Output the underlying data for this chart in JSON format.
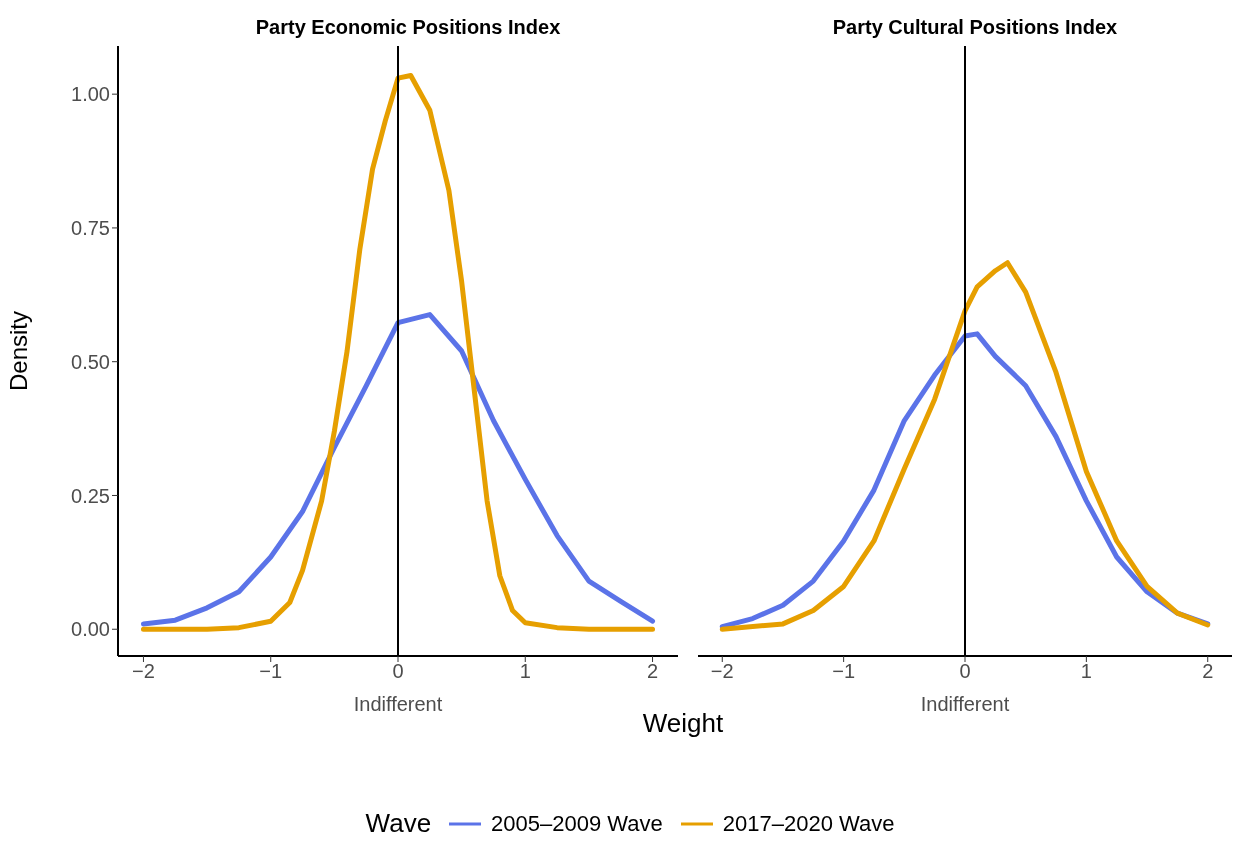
{
  "chart_data": [
    {
      "type": "line",
      "title": "Party Economic Positions Index",
      "xlabel": "Weight",
      "ylabel": "Density",
      "legend_title": "Wave",
      "legend": "bottom",
      "xlim": [
        -2.2,
        2.2
      ],
      "xticks": [
        -2,
        -1,
        0,
        1,
        2
      ],
      "ylim": [
        -0.05,
        1.09
      ],
      "yticks": [
        {
          "value": 0,
          "label": "0.00"
        },
        {
          "value": 0.25,
          "label": "0.25"
        },
        {
          "value": 0.5,
          "label": "0.50"
        },
        {
          "value": 0.75,
          "label": "0.75"
        },
        {
          "value": 1,
          "label": "1.00"
        }
      ],
      "ref_lines": [
        {
          "axis": "x",
          "value": 0,
          "label": "Indifferent",
          "color": "#000000"
        }
      ],
      "series": [
        {
          "name": "2005–2009 Wave",
          "color": "#5b73e8",
          "x": [
            -2,
            -1.75,
            -1.5,
            -1.25,
            -1,
            -0.75,
            -0.5,
            -0.25,
            0,
            0.25,
            0.5,
            0.75,
            1,
            1.25,
            1.5,
            1.75,
            2
          ],
          "values": [
            0.01,
            0.017,
            0.04,
            0.07,
            0.135,
            0.22,
            0.34,
            0.455,
            0.573,
            0.588,
            0.52,
            0.39,
            0.28,
            0.175,
            0.09,
            0.052,
            0.015
          ]
        },
        {
          "name": "2017–2020 Wave",
          "color": "#e69f00",
          "x": [
            -2,
            -1.5,
            -1.25,
            -1,
            -0.85,
            -0.75,
            -0.6,
            -0.5,
            -0.4,
            -0.3,
            -0.2,
            -0.1,
            0,
            0.1,
            0.25,
            0.4,
            0.5,
            0.6,
            0.7,
            0.8,
            0.9,
            1,
            1.25,
            1.5,
            2
          ],
          "values": [
            0,
            0,
            0.003,
            0.015,
            0.05,
            0.11,
            0.24,
            0.37,
            0.52,
            0.71,
            0.86,
            0.95,
            1.03,
            1.035,
            0.97,
            0.82,
            0.65,
            0.445,
            0.24,
            0.1,
            0.035,
            0.012,
            0.003,
            0,
            0
          ]
        }
      ]
    },
    {
      "type": "line",
      "title": "Party Cultural Positions Index",
      "tick_labels": "x",
      "xlim": [
        -2.2,
        2.2
      ],
      "xticks": [
        -2,
        -1,
        0,
        1,
        2
      ],
      "ylim": [
        -0.05,
        1.09
      ],
      "ref_lines": [
        {
          "axis": "x",
          "value": 0,
          "label": "Indifferent",
          "color": "#000000"
        }
      ],
      "series": [
        {
          "color": "#5b73e8",
          "x": [
            -2,
            -1.75,
            -1.5,
            -1.25,
            -1,
            -0.75,
            -0.5,
            -0.25,
            0,
            0.1,
            0.25,
            0.5,
            0.75,
            1,
            1.25,
            1.5,
            1.75,
            2
          ],
          "values": [
            0.005,
            0.02,
            0.045,
            0.09,
            0.165,
            0.26,
            0.39,
            0.475,
            0.548,
            0.552,
            0.51,
            0.455,
            0.36,
            0.24,
            0.135,
            0.07,
            0.03,
            0.01
          ]
        },
        {
          "color": "#e69f00",
          "x": [
            -2,
            -1.5,
            -1.25,
            -1,
            -0.75,
            -0.5,
            -0.25,
            0,
            0.1,
            0.25,
            0.35,
            0.5,
            0.75,
            1,
            1.25,
            1.5,
            1.75,
            2
          ],
          "values": [
            0,
            0.01,
            0.035,
            0.08,
            0.165,
            0.3,
            0.43,
            0.595,
            0.64,
            0.67,
            0.685,
            0.63,
            0.48,
            0.295,
            0.165,
            0.08,
            0.03,
            0.008
          ]
        }
      ]
    }
  ]
}
